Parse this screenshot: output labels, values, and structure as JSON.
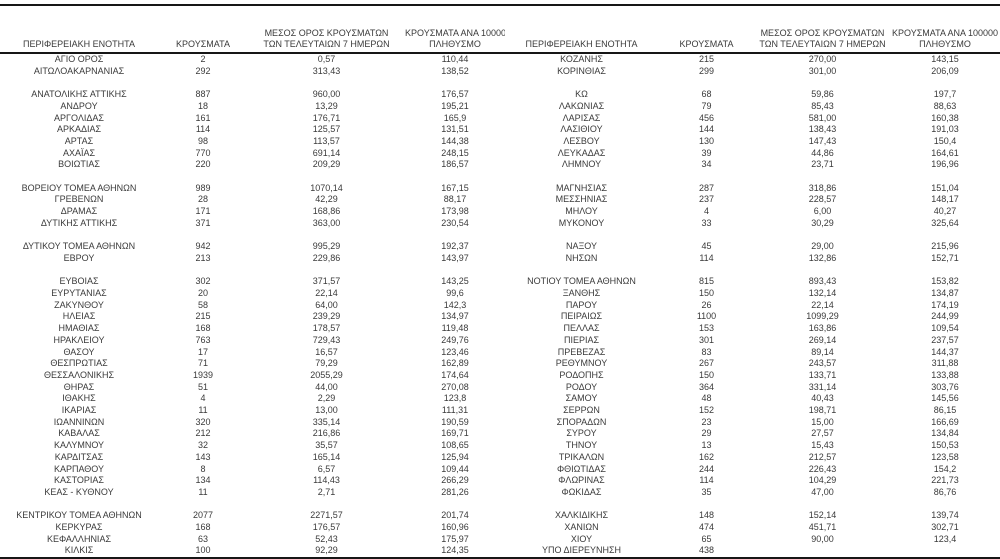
{
  "page": {
    "background_color": "#ffffff",
    "text_color": "#3a3a3a",
    "rule_color": "#161616"
  },
  "table": {
    "headers": {
      "region": "ΠΕΡΙΦΕΡΕΙΑΚΗ ΕΝΟΤΗΤΑ",
      "cases": "ΚΡΟΥΣΜΑΤΑ",
      "avg7": [
        "ΜΕΣΟΣ ΟΡΟΣ ΚΡΟΥΣΜΑΤΩΝ",
        "ΤΩΝ ΤΕΛΕΥΤΑΙΩΝ 7 ΗΜΕΡΩΝ"
      ],
      "per100k": [
        "ΚΡΟΥΣΜΑΤΑ ΑΝΑ 100000",
        "ΠΛΗΘΥΣΜΟ"
      ]
    },
    "rows": [
      {
        "left": [
          "ΑΓΙΟ ΟΡΟΣ",
          "2",
          "0,57",
          "110,44"
        ],
        "right": [
          "ΚΟΖΑΝΗΣ",
          "215",
          "270,00",
          "143,15"
        ]
      },
      {
        "left": [
          "ΑΙΤΩΛΟΑΚΑΡΝΑΝΙΑΣ",
          "292",
          "313,43",
          "138,52"
        ],
        "right": [
          "ΚΟΡΙΝΘΙΑΣ",
          "299",
          "301,00",
          "206,09"
        ]
      },
      {
        "spacer": true
      },
      {
        "left": [
          "ΑΝΑΤΟΛΙΚΗΣ ΑΤΤΙΚΗΣ",
          "887",
          "960,00",
          "176,57"
        ],
        "right": [
          "ΚΩ",
          "68",
          "59,86",
          "197,7"
        ]
      },
      {
        "left": [
          "ΑΝΔΡΟΥ",
          "18",
          "13,29",
          "195,21"
        ],
        "right": [
          "ΛΑΚΩΝΙΑΣ",
          "79",
          "85,43",
          "88,63"
        ]
      },
      {
        "left": [
          "ΑΡΓΟΛΙΔΑΣ",
          "161",
          "176,71",
          "165,9"
        ],
        "right": [
          "ΛΑΡΙΣΑΣ",
          "456",
          "581,00",
          "160,38"
        ]
      },
      {
        "left": [
          "ΑΡΚΑΔΙΑΣ",
          "114",
          "125,57",
          "131,51"
        ],
        "right": [
          "ΛΑΣΙΘΙΟΥ",
          "144",
          "138,43",
          "191,03"
        ]
      },
      {
        "left": [
          "ΑΡΤΑΣ",
          "98",
          "113,57",
          "144,38"
        ],
        "right": [
          "ΛΕΣΒΟΥ",
          "130",
          "147,43",
          "150,4"
        ]
      },
      {
        "left": [
          "ΑΧΑΪΑΣ",
          "770",
          "691,14",
          "248,15"
        ],
        "right": [
          "ΛΕΥΚΑΔΑΣ",
          "39",
          "44,86",
          "164,61"
        ]
      },
      {
        "left": [
          "ΒΟΙΩΤΙΑΣ",
          "220",
          "209,29",
          "186,57"
        ],
        "right": [
          "ΛΗΜΝΟΥ",
          "34",
          "23,71",
          "196,96"
        ]
      },
      {
        "spacer": true
      },
      {
        "left": [
          "ΒΟΡΕΙΟΥ ΤΟΜΕΑ ΑΘΗΝΩΝ",
          "989",
          "1070,14",
          "167,15"
        ],
        "right": [
          "ΜΑΓΝΗΣΙΑΣ",
          "287",
          "318,86",
          "151,04"
        ]
      },
      {
        "left": [
          "ΓΡΕΒΕΝΩΝ",
          "28",
          "42,29",
          "88,17"
        ],
        "right": [
          "ΜΕΣΣΗΝΙΑΣ",
          "237",
          "228,57",
          "148,17"
        ]
      },
      {
        "left": [
          "ΔΡΑΜΑΣ",
          "171",
          "168,86",
          "173,98"
        ],
        "right": [
          "ΜΗΛΟΥ",
          "4",
          "6,00",
          "40,27"
        ]
      },
      {
        "left": [
          "ΔΥΤΙΚΗΣ ΑΤΤΙΚΗΣ",
          "371",
          "363,00",
          "230,54"
        ],
        "right": [
          "ΜΥΚΟΝΟΥ",
          "33",
          "30,29",
          "325,64"
        ]
      },
      {
        "spacer": true
      },
      {
        "left": [
          "ΔΥΤΙΚΟΥ ΤΟΜΕΑ ΑΘΗΝΩΝ",
          "942",
          "995,29",
          "192,37"
        ],
        "right": [
          "ΝΑΞΟΥ",
          "45",
          "29,00",
          "215,96"
        ]
      },
      {
        "left": [
          "ΕΒΡΟΥ",
          "213",
          "229,86",
          "143,97"
        ],
        "right": [
          "ΝΗΣΩΝ",
          "114",
          "132,86",
          "152,71"
        ]
      },
      {
        "spacer": true
      },
      {
        "left": [
          "ΕΥΒΟΙΑΣ",
          "302",
          "371,57",
          "143,25"
        ],
        "right": [
          "ΝΟΤΙΟΥ ΤΟΜΕΑ ΑΘΗΝΩΝ",
          "815",
          "893,43",
          "153,82"
        ]
      },
      {
        "left": [
          "ΕΥΡΥΤΑΝΙΑΣ",
          "20",
          "22,14",
          "99,6"
        ],
        "right": [
          "ΞΑΝΘΗΣ",
          "150",
          "132,14",
          "134,87"
        ]
      },
      {
        "left": [
          "ΖΑΚΥΝΘΟΥ",
          "58",
          "64,00",
          "142,3"
        ],
        "right": [
          "ΠΑΡΟΥ",
          "26",
          "22,14",
          "174,19"
        ]
      },
      {
        "left": [
          "ΗΛΕΙΑΣ",
          "215",
          "239,29",
          "134,97"
        ],
        "right": [
          "ΠΕΙΡΑΙΩΣ",
          "1100",
          "1099,29",
          "244,99"
        ]
      },
      {
        "left": [
          "ΗΜΑΘΙΑΣ",
          "168",
          "178,57",
          "119,48"
        ],
        "right": [
          "ΠΕΛΛΑΣ",
          "153",
          "163,86",
          "109,54"
        ]
      },
      {
        "left": [
          "ΗΡΑΚΛΕΙΟΥ",
          "763",
          "729,43",
          "249,76"
        ],
        "right": [
          "ΠΙΕΡΙΑΣ",
          "301",
          "269,14",
          "237,57"
        ]
      },
      {
        "left": [
          "ΘΑΣΟΥ",
          "17",
          "16,57",
          "123,46"
        ],
        "right": [
          "ΠΡΕΒΕΖΑΣ",
          "83",
          "89,14",
          "144,37"
        ]
      },
      {
        "left": [
          "ΘΕΣΠΡΩΤΙΑΣ",
          "71",
          "79,29",
          "162,89"
        ],
        "right": [
          "ΡΕΘΥΜΝΟΥ",
          "267",
          "243,57",
          "311,88"
        ]
      },
      {
        "left": [
          "ΘΕΣΣΑΛΟΝΙΚΗΣ",
          "1939",
          "2055,29",
          "174,64"
        ],
        "right": [
          "ΡΟΔΟΠΗΣ",
          "150",
          "133,71",
          "133,88"
        ]
      },
      {
        "left": [
          "ΘΗΡΑΣ",
          "51",
          "44,00",
          "270,08"
        ],
        "right": [
          "ΡΟΔΟΥ",
          "364",
          "331,14",
          "303,76"
        ]
      },
      {
        "left": [
          "ΙΘΑΚΗΣ",
          "4",
          "2,29",
          "123,8"
        ],
        "right": [
          "ΣΑΜΟΥ",
          "48",
          "40,43",
          "145,56"
        ]
      },
      {
        "left": [
          "ΙΚΑΡΙΑΣ",
          "11",
          "13,00",
          "111,31"
        ],
        "right": [
          "ΣΕΡΡΩΝ",
          "152",
          "198,71",
          "86,15"
        ]
      },
      {
        "left": [
          "ΙΩΑΝΝΙΝΩΝ",
          "320",
          "335,14",
          "190,59"
        ],
        "right": [
          "ΣΠΟΡΑΔΩΝ",
          "23",
          "15,00",
          "166,69"
        ]
      },
      {
        "left": [
          "ΚΑΒΑΛΑΣ",
          "212",
          "216,86",
          "169,71"
        ],
        "right": [
          "ΣΥΡΟΥ",
          "29",
          "27,57",
          "134,84"
        ]
      },
      {
        "left": [
          "ΚΑΛΥΜΝΟΥ",
          "32",
          "35,57",
          "108,65"
        ],
        "right": [
          "ΤΗΝΟΥ",
          "13",
          "15,43",
          "150,53"
        ]
      },
      {
        "left": [
          "ΚΑΡΔΙΤΣΑΣ",
          "143",
          "165,14",
          "125,94"
        ],
        "right": [
          "ΤΡΙΚΑΛΩΝ",
          "162",
          "212,57",
          "123,58"
        ]
      },
      {
        "left": [
          "ΚΑΡΠΑΘΟΥ",
          "8",
          "6,57",
          "109,44"
        ],
        "right": [
          "ΦΘΙΩΤΙΔΑΣ",
          "244",
          "226,43",
          "154,2"
        ]
      },
      {
        "left": [
          "ΚΑΣΤΟΡΙΑΣ",
          "134",
          "114,43",
          "266,29"
        ],
        "right": [
          "ΦΛΩΡΙΝΑΣ",
          "114",
          "104,29",
          "221,73"
        ]
      },
      {
        "left": [
          "ΚΕΑΣ - ΚΥΘΝΟΥ",
          "11",
          "2,71",
          "281,26"
        ],
        "right": [
          "ΦΩΚΙΔΑΣ",
          "35",
          "47,00",
          "86,76"
        ]
      },
      {
        "spacer": true
      },
      {
        "left": [
          "ΚΕΝΤΡΙΚΟΥ ΤΟΜΕΑ ΑΘΗΝΩΝ",
          "2077",
          "2271,57",
          "201,74"
        ],
        "right": [
          "ΧΑΛΚΙΔΙΚΗΣ",
          "148",
          "152,14",
          "139,74"
        ]
      },
      {
        "left": [
          "ΚΕΡΚΥΡΑΣ",
          "168",
          "176,57",
          "160,96"
        ],
        "right": [
          "ΧΑΝΙΩΝ",
          "474",
          "451,71",
          "302,71"
        ]
      },
      {
        "left": [
          "ΚΕΦΑΛΛΗΝΙΑΣ",
          "63",
          "52,43",
          "175,97"
        ],
        "right": [
          "ΧΙΟΥ",
          "65",
          "90,00",
          "123,4"
        ]
      },
      {
        "left": [
          "ΚΙΛΚΙΣ",
          "100",
          "92,29",
          "124,35"
        ],
        "right": [
          "ΥΠΟ ΔΙΕΡΕΥΝΗΣΗ",
          "438",
          "",
          ""
        ]
      }
    ]
  }
}
